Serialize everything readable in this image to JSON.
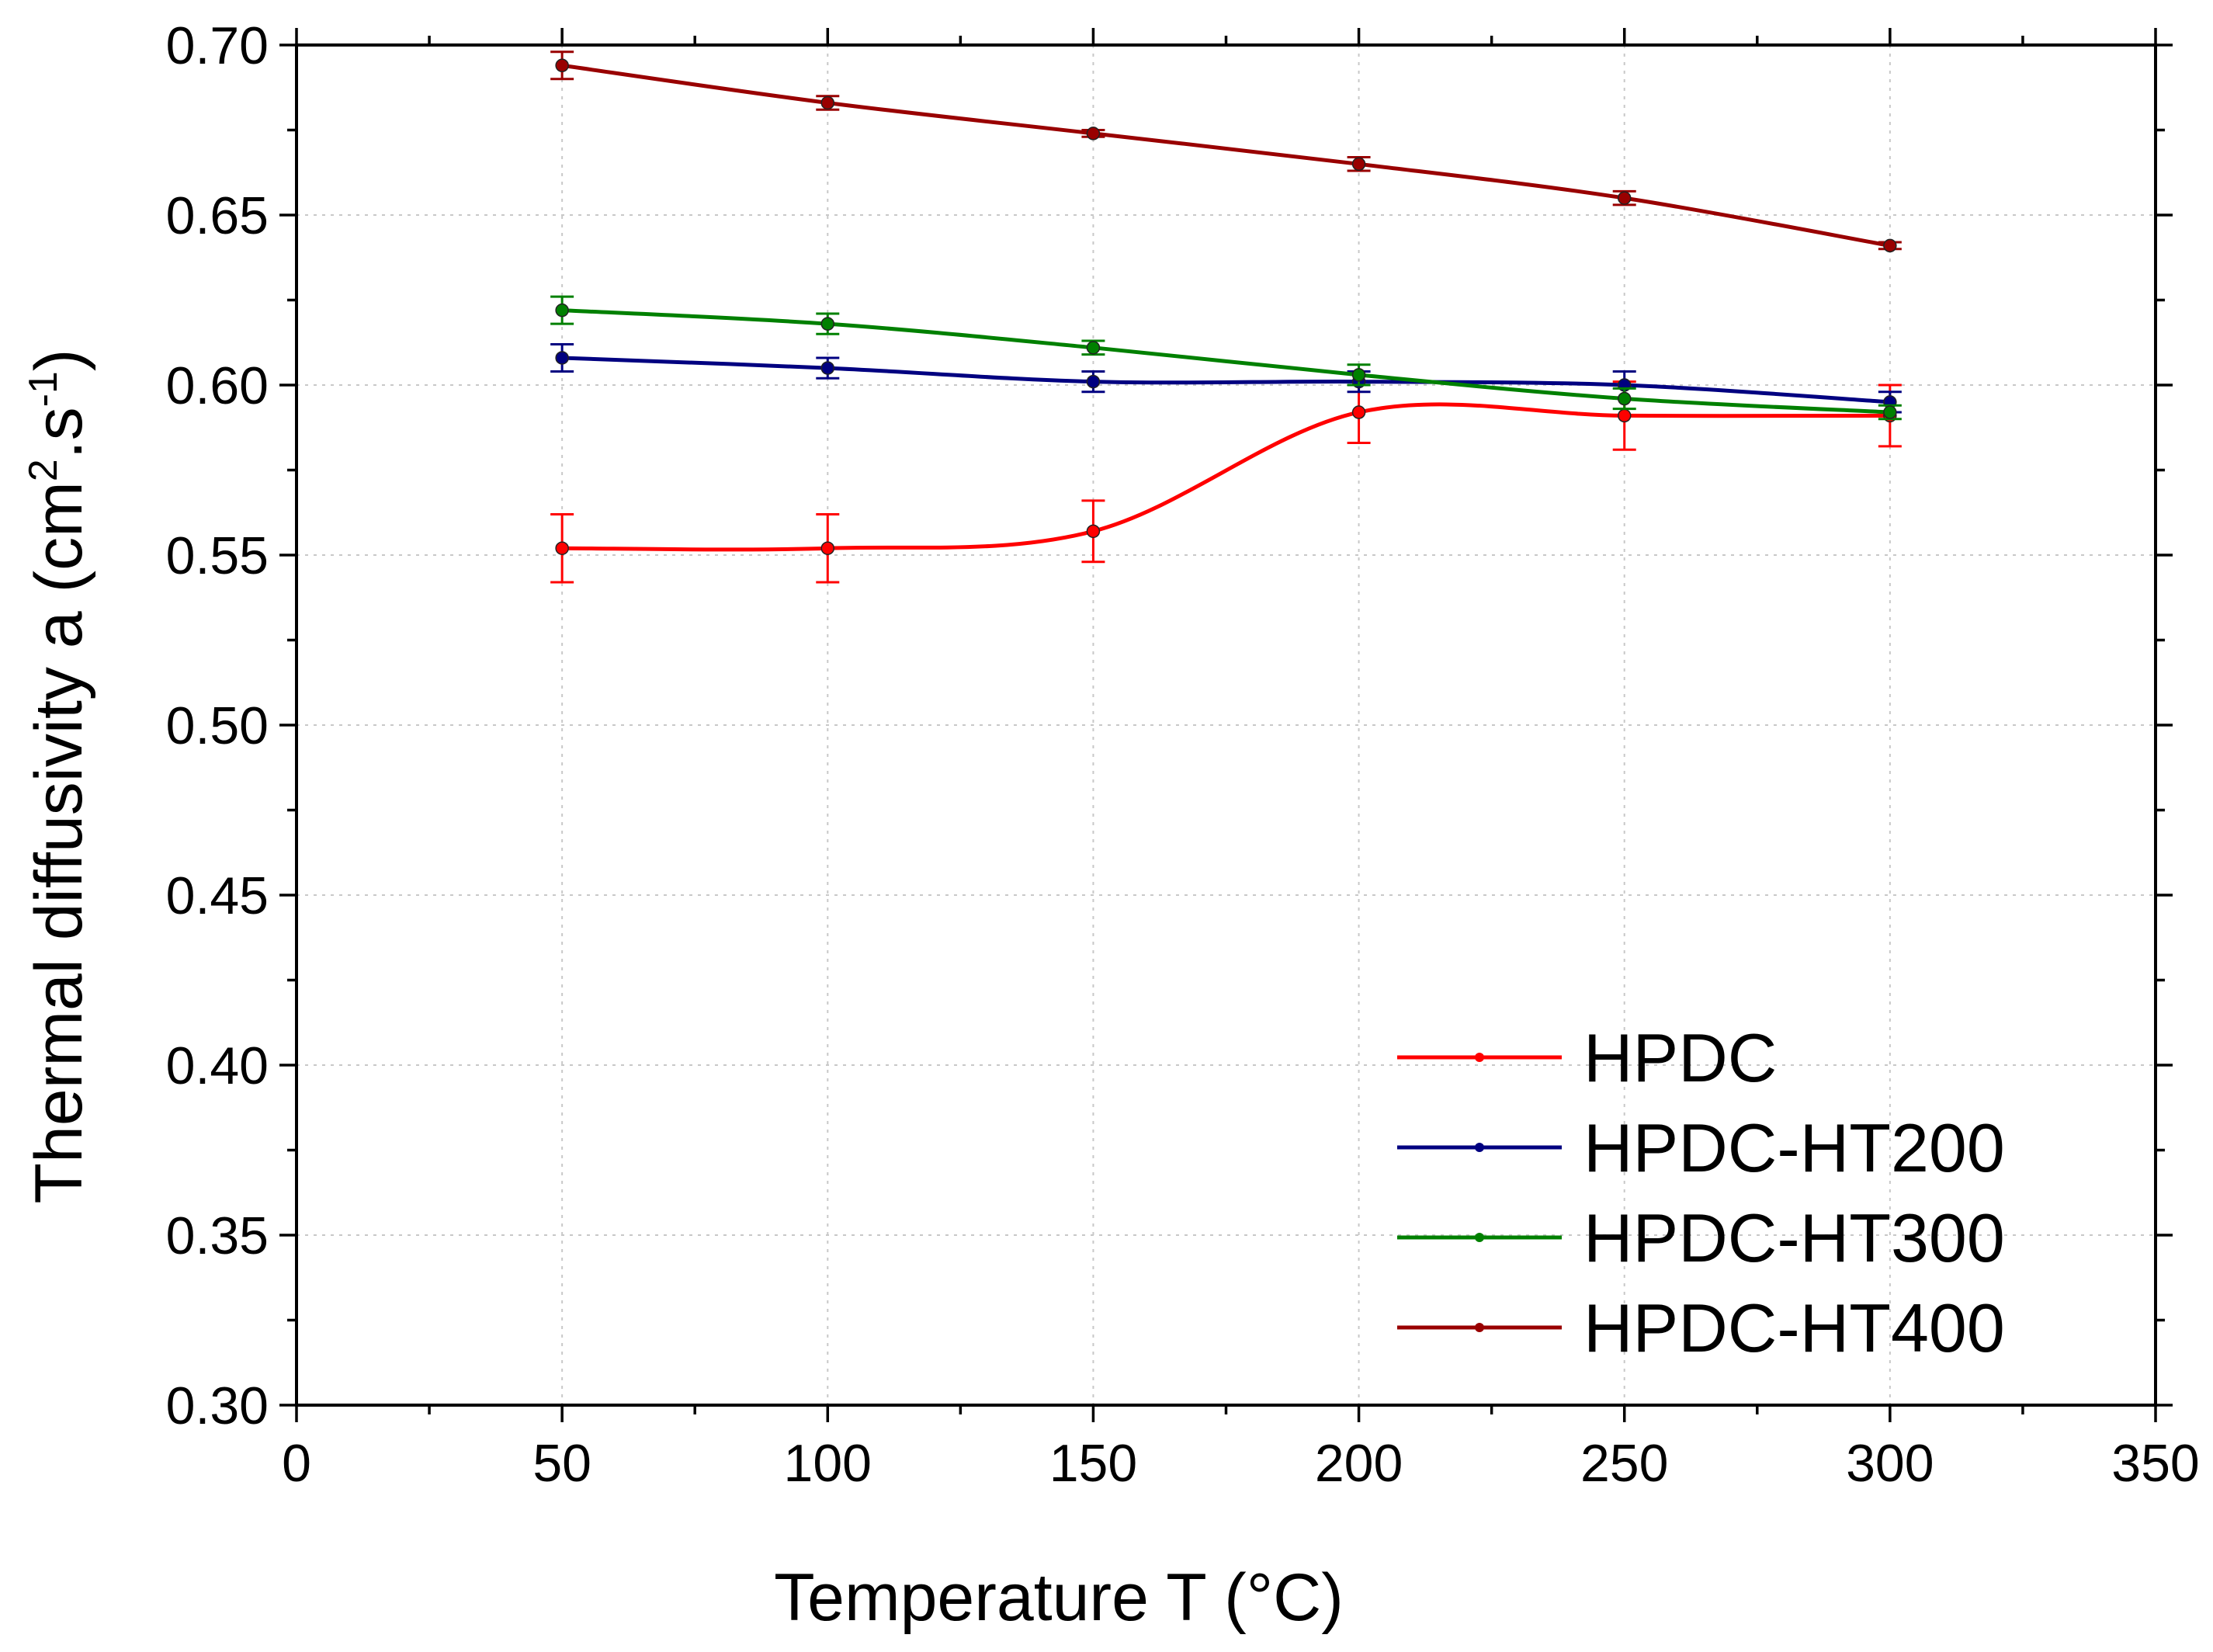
{
  "chart_data": {
    "type": "line",
    "title": "",
    "xlabel": "Temperature T (°C)",
    "ylabel": {
      "prefix": "Thermal diffusivity a (cm",
      "sup1": "2",
      "middle": ".s",
      "sup2": "-1",
      "suffix": ")"
    },
    "xlim": [
      0,
      350
    ],
    "ylim": [
      0.3,
      0.7
    ],
    "x_ticks": [
      0,
      50,
      100,
      150,
      200,
      250,
      300,
      350
    ],
    "x_tick_labels": [
      "0",
      "50",
      "100",
      "150",
      "200",
      "250",
      "300",
      "350"
    ],
    "y_ticks": [
      0.3,
      0.35,
      0.4,
      0.45,
      0.5,
      0.55,
      0.6,
      0.65,
      0.7
    ],
    "y_tick_labels": [
      "0.30",
      "0.35",
      "0.40",
      "0.45",
      "0.50",
      "0.55",
      "0.60",
      "0.65",
      "0.70"
    ],
    "grid": true,
    "legend_position": "bottom-right",
    "x": [
      50,
      100,
      150,
      200,
      250,
      300
    ],
    "series": [
      {
        "name": "HPDC",
        "color": "#ff0000",
        "values": [
          0.552,
          0.552,
          0.557,
          0.592,
          0.591,
          0.591
        ],
        "errors": [
          0.01,
          0.01,
          0.009,
          0.009,
          0.01,
          0.009
        ]
      },
      {
        "name": "HPDC-HT200",
        "color": "#000080",
        "values": [
          0.608,
          0.605,
          0.601,
          0.601,
          0.6,
          0.595
        ],
        "errors": [
          0.004,
          0.003,
          0.003,
          0.003,
          0.004,
          0.003
        ]
      },
      {
        "name": "HPDC-HT300",
        "color": "#008000",
        "values": [
          0.622,
          0.618,
          0.611,
          0.603,
          0.596,
          0.592
        ],
        "errors": [
          0.004,
          0.003,
          0.002,
          0.003,
          0.003,
          0.002
        ]
      },
      {
        "name": "HPDC-HT400",
        "color": "#990000",
        "values": [
          0.694,
          0.683,
          0.674,
          0.665,
          0.655,
          0.641
        ],
        "errors": [
          0.004,
          0.002,
          0.001,
          0.002,
          0.002,
          0.001
        ]
      }
    ]
  }
}
